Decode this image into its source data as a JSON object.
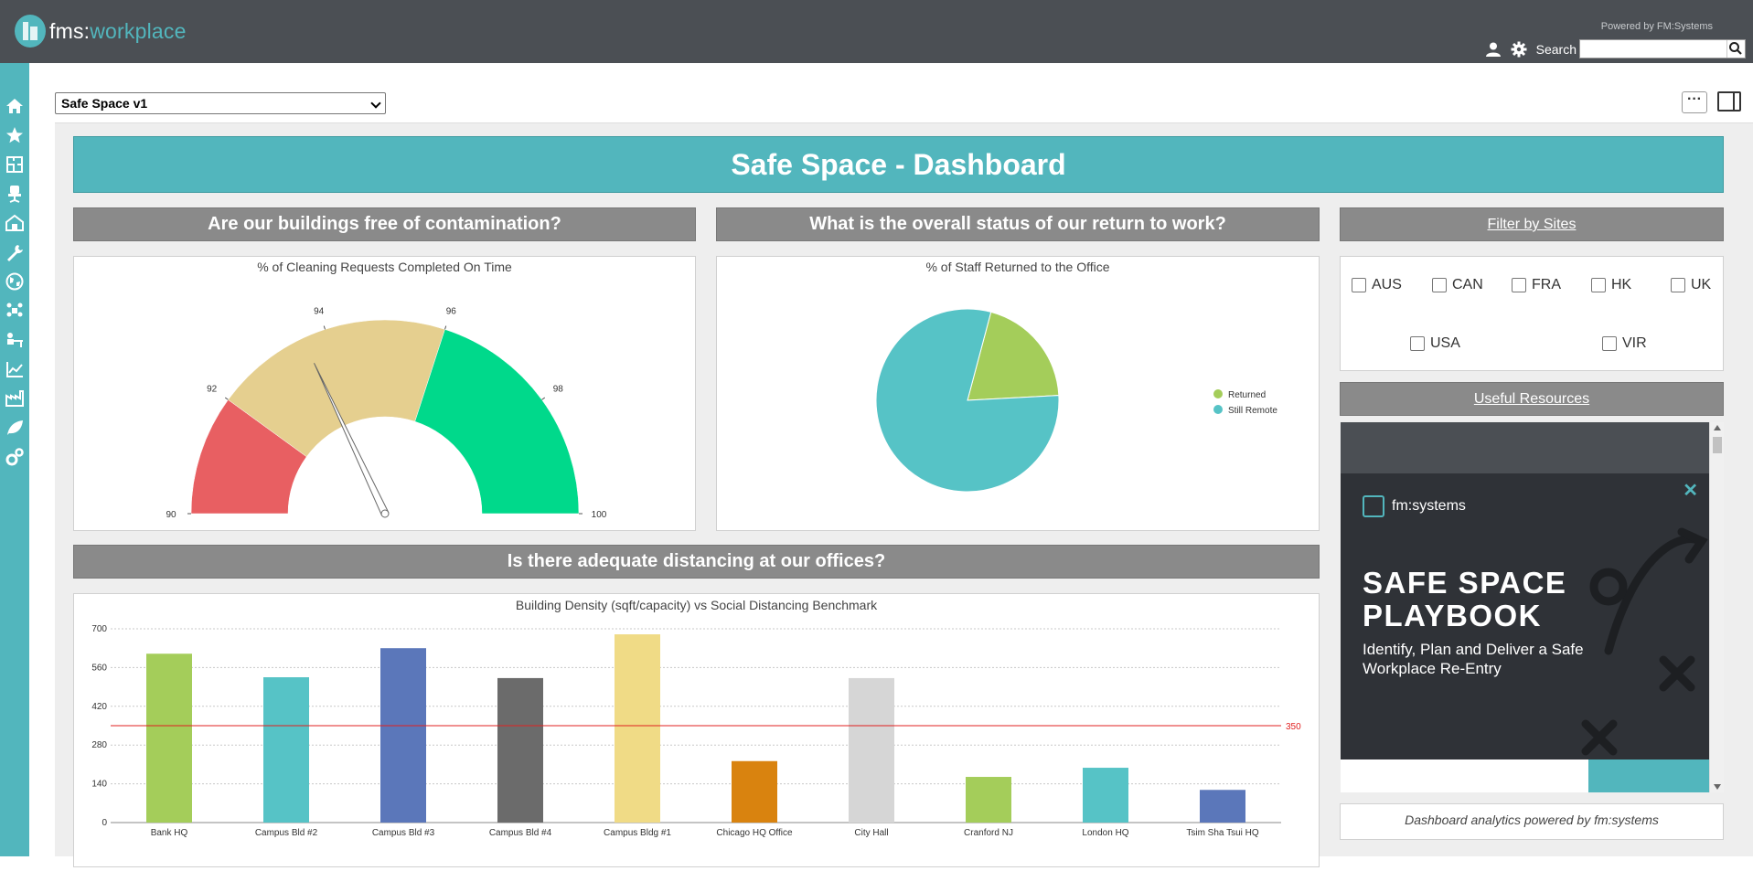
{
  "app": {
    "logo_prefix": "fms:",
    "logo_suffix": "workplace",
    "powered_by": "Powered by FM:Systems",
    "search_label": "Search",
    "search_value": ""
  },
  "sidebar": {
    "items": [
      {
        "icon": "home-icon"
      },
      {
        "icon": "star-icon"
      },
      {
        "icon": "floorplan-icon"
      },
      {
        "icon": "chair-icon"
      },
      {
        "icon": "building-icon"
      },
      {
        "icon": "wrench-icon"
      },
      {
        "icon": "globe-icon"
      },
      {
        "icon": "people-icon"
      },
      {
        "icon": "desk-icon"
      },
      {
        "icon": "analytics-icon"
      },
      {
        "icon": "factory-icon"
      },
      {
        "icon": "leaf-icon"
      },
      {
        "icon": "gears-icon"
      }
    ]
  },
  "toolbar": {
    "dashboard_selected": "Safe Space v1",
    "more_label": "···"
  },
  "dashboard": {
    "title": "Safe Space - Dashboard",
    "section1": "Are our buildings free of contamination?",
    "section2": "What is the overall status of our return to work?",
    "section3": "Is there adequate distancing at our offices?",
    "filter_title": "Filter by Sites",
    "resources_title": "Useful Resources",
    "footer": "Dashboard analytics powered by fm:systems",
    "sites": [
      "AUS",
      "CAN",
      "FRA",
      "HK",
      "UK",
      "USA",
      "VIR"
    ]
  },
  "ad": {
    "brand": "fm:systems",
    "close": "✕",
    "title": "SAFE SPACE PLAYBOOK",
    "subtitle": "Identify, Plan and Deliver a Safe Workplace Re-Entry"
  },
  "colors": {
    "teal": "#52b6bd",
    "gauge_red": "#e85f62",
    "gauge_tan": "#e5cf8f",
    "gauge_green": "#00d98b",
    "pie_returned": "#a4cd5a",
    "pie_remote": "#56c3c6",
    "benchmark": "#e02020"
  },
  "chart_data": [
    {
      "type": "gauge",
      "title": "% of Cleaning Requests Completed On Time",
      "min": 90,
      "max": 100,
      "ticks": [
        90,
        92,
        94,
        96,
        98,
        100
      ],
      "bands": [
        {
          "from": 90,
          "to": 92,
          "color": "#e85f62"
        },
        {
          "from": 92,
          "to": 96,
          "color": "#e5cf8f"
        },
        {
          "from": 96,
          "to": 100,
          "color": "#00d98b"
        }
      ],
      "value": 93.6
    },
    {
      "type": "pie",
      "title": "% of Staff Returned to the Office",
      "series": [
        {
          "name": "Returned",
          "value": 20,
          "color": "#a4cd5a"
        },
        {
          "name": "Still Remote",
          "value": 80,
          "color": "#56c3c6"
        }
      ]
    },
    {
      "type": "bar",
      "title": "Building Density (sqft/capacity) vs Social Distancing Benchmark",
      "categories": [
        "Bank HQ",
        "Campus Bld #2",
        "Campus Bld #3",
        "Campus Bld #4",
        "Campus Bldg #1",
        "Chicago HQ Office",
        "City Hall",
        "Cranford NJ",
        "London HQ",
        "Tsim Sha Tsui HQ"
      ],
      "values": [
        610,
        525,
        630,
        522,
        680,
        222,
        522,
        165,
        198,
        118
      ],
      "colors": [
        "#a4cd5a",
        "#56c3c6",
        "#5b77ba",
        "#6b6b6b",
        "#f0db86",
        "#d9830f",
        "#d6d6d6",
        "#a4cd5a",
        "#56c3c6",
        "#5b77ba"
      ],
      "yticks": [
        0,
        140,
        280,
        420,
        560,
        700
      ],
      "ylim": [
        0,
        700
      ],
      "benchmark": {
        "value": 350,
        "label": "350"
      },
      "grid": true
    }
  ]
}
